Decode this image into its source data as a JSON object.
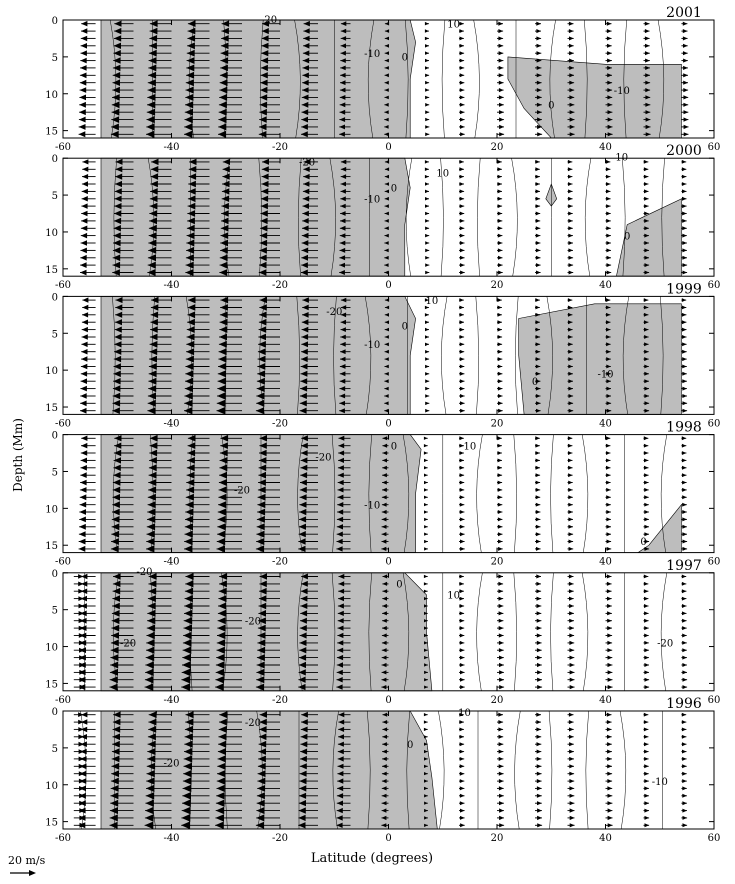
{
  "chart_data": {
    "type": "contour",
    "ylabel": "Depth (Mm)",
    "xlabel": "Latitude (degrees)",
    "scale_label": "20 m/s",
    "shading": "shaded = negative (southward) flow",
    "xlim": [
      -60,
      60
    ],
    "ylim": [
      16,
      0
    ],
    "x_ticks": [
      -60,
      -40,
      -20,
      0,
      20,
      40,
      60
    ],
    "y_ticks": [
      0,
      5,
      10,
      15
    ],
    "depth_levels": [
      0.5,
      1.5,
      2.5,
      3.5,
      4.5,
      5.5,
      6.5,
      7.5,
      8.5,
      9.5,
      10.5,
      11.5,
      12.5,
      13.5,
      14.5,
      15.5
    ],
    "panels": [
      {
        "year": "2001",
        "vector_columns": [
          {
            "lat": -54,
            "v": -12
          },
          {
            "lat": -47,
            "v": -16
          },
          {
            "lat": -40,
            "v": -18
          },
          {
            "lat": -33,
            "v": -18
          },
          {
            "lat": -27,
            "v": -17
          },
          {
            "lat": -20,
            "v": -15
          },
          {
            "lat": -13,
            "v": -12
          },
          {
            "lat": -7,
            "v": -8
          },
          {
            "lat": 0,
            "v": -3
          },
          {
            "lat": 7,
            "v": 2
          },
          {
            "lat": 13,
            "v": 4
          },
          {
            "lat": 20,
            "v": 5
          },
          {
            "lat": 27,
            "v": 5
          },
          {
            "lat": 33,
            "v": 5
          },
          {
            "lat": 40,
            "v": 5
          },
          {
            "lat": 47,
            "v": 5
          },
          {
            "lat": 54,
            "v": 5
          }
        ],
        "negative_regions": [
          [
            [
              -53,
              0
            ],
            [
              4,
              0
            ],
            [
              5,
              3
            ],
            [
              4,
              8
            ],
            [
              4,
              16
            ],
            [
              -53,
              16
            ]
          ],
          [
            [
              22,
              5
            ],
            [
              40,
              6
            ],
            [
              54,
              6
            ],
            [
              54,
              16
            ],
            [
              30,
              16
            ],
            [
              25,
              12
            ],
            [
              22,
              8
            ]
          ]
        ],
        "contour_labels": [
          {
            "text": "-20",
            "lat": -22,
            "depth": 0.4
          },
          {
            "text": "-10",
            "lat": -3,
            "depth": 5
          },
          {
            "text": "0",
            "lat": 3,
            "depth": 5.5
          },
          {
            "text": "10",
            "lat": 12,
            "depth": 1
          },
          {
            "text": "0",
            "lat": 30,
            "depth": 12
          },
          {
            "text": "-10",
            "lat": 43,
            "depth": 10
          }
        ]
      },
      {
        "year": "2000",
        "vector_columns": [
          {
            "lat": -54,
            "v": -11
          },
          {
            "lat": -47,
            "v": -15
          },
          {
            "lat": -40,
            "v": -17
          },
          {
            "lat": -33,
            "v": -17
          },
          {
            "lat": -27,
            "v": -16
          },
          {
            "lat": -20,
            "v": -15
          },
          {
            "lat": -13,
            "v": -12
          },
          {
            "lat": -7,
            "v": -8
          },
          {
            "lat": 0,
            "v": -3
          },
          {
            "lat": 7,
            "v": 2
          },
          {
            "lat": 13,
            "v": 4
          },
          {
            "lat": 20,
            "v": 4
          },
          {
            "lat": 27,
            "v": 4
          },
          {
            "lat": 33,
            "v": 4
          },
          {
            "lat": 40,
            "v": 4
          },
          {
            "lat": 47,
            "v": 4
          },
          {
            "lat": 54,
            "v": 4
          }
        ],
        "negative_regions": [
          [
            [
              -53,
              0
            ],
            [
              3,
              0
            ],
            [
              4,
              4
            ],
            [
              3,
              9
            ],
            [
              3,
              16
            ],
            [
              -53,
              16
            ]
          ],
          [
            [
              29,
              5.5
            ],
            [
              30,
              3.5
            ],
            [
              31,
              5.5
            ],
            [
              30,
              6.5
            ]
          ],
          [
            [
              44,
              9
            ],
            [
              54,
              5.5
            ],
            [
              54,
              16
            ],
            [
              42,
              16
            ]
          ]
        ],
        "contour_labels": [
          {
            "text": "-20",
            "lat": -15,
            "depth": 1
          },
          {
            "text": "-10",
            "lat": -3,
            "depth": 6
          },
          {
            "text": "0",
            "lat": 1,
            "depth": 4.5
          },
          {
            "text": "10",
            "lat": 10,
            "depth": 2.5
          },
          {
            "text": "10",
            "lat": 43,
            "depth": 0.3
          },
          {
            "text": "0",
            "lat": 44,
            "depth": 11
          }
        ]
      },
      {
        "year": "1999",
        "vector_columns": [
          {
            "lat": -54,
            "v": -11
          },
          {
            "lat": -47,
            "v": -15
          },
          {
            "lat": -40,
            "v": -17
          },
          {
            "lat": -33,
            "v": -18
          },
          {
            "lat": -27,
            "v": -18
          },
          {
            "lat": -20,
            "v": -17
          },
          {
            "lat": -13,
            "v": -13
          },
          {
            "lat": -7,
            "v": -8
          },
          {
            "lat": 0,
            "v": -3
          },
          {
            "lat": 7,
            "v": 2
          },
          {
            "lat": 13,
            "v": 4
          },
          {
            "lat": 20,
            "v": 4
          },
          {
            "lat": 27,
            "v": 4
          },
          {
            "lat": 33,
            "v": 4
          },
          {
            "lat": 40,
            "v": 4
          },
          {
            "lat": 47,
            "v": 4
          },
          {
            "lat": 54,
            "v": 4
          }
        ],
        "negative_regions": [
          [
            [
              -53,
              0
            ],
            [
              3,
              0
            ],
            [
              5,
              3
            ],
            [
              4,
              8
            ],
            [
              4,
              16
            ],
            [
              -53,
              16
            ]
          ],
          [
            [
              24,
              3
            ],
            [
              38,
              1
            ],
            [
              54,
              1
            ],
            [
              54,
              16
            ],
            [
              25,
              16
            ],
            [
              24,
              8
            ]
          ]
        ],
        "contour_labels": [
          {
            "text": "-20",
            "lat": -10,
            "depth": 2.5
          },
          {
            "text": "-10",
            "lat": -3,
            "depth": 7
          },
          {
            "text": "0",
            "lat": 3,
            "depth": 4.5
          },
          {
            "text": "10",
            "lat": 8,
            "depth": 1
          },
          {
            "text": "0",
            "lat": 27,
            "depth": 12
          },
          {
            "text": "-10",
            "lat": 40,
            "depth": 11
          }
        ]
      },
      {
        "year": "1998",
        "vector_columns": [
          {
            "lat": -54,
            "v": -12
          },
          {
            "lat": -47,
            "v": -16
          },
          {
            "lat": -40,
            "v": -18
          },
          {
            "lat": -33,
            "v": -18
          },
          {
            "lat": -27,
            "v": -18
          },
          {
            "lat": -20,
            "v": -17
          },
          {
            "lat": -13,
            "v": -14
          },
          {
            "lat": -7,
            "v": -10
          },
          {
            "lat": 0,
            "v": -5
          },
          {
            "lat": 7,
            "v": 1
          },
          {
            "lat": 13,
            "v": 4
          },
          {
            "lat": 20,
            "v": 4
          },
          {
            "lat": 27,
            "v": 4
          },
          {
            "lat": 33,
            "v": 4
          },
          {
            "lat": 40,
            "v": 4
          },
          {
            "lat": 47,
            "v": 4
          },
          {
            "lat": 54,
            "v": 4
          }
        ],
        "negative_regions": [
          [
            [
              -53,
              0
            ],
            [
              4,
              0
            ],
            [
              6,
              2
            ],
            [
              5,
              8
            ],
            [
              5,
              16
            ],
            [
              -53,
              16
            ]
          ],
          [
            [
              48,
              15
            ],
            [
              54,
              9.5
            ],
            [
              54,
              16
            ],
            [
              46,
              16
            ]
          ]
        ],
        "contour_labels": [
          {
            "text": "-20",
            "lat": -12,
            "depth": 3.5
          },
          {
            "text": "-20",
            "lat": -27,
            "depth": 8
          },
          {
            "text": "-10",
            "lat": -3,
            "depth": 10
          },
          {
            "text": "0",
            "lat": 1,
            "depth": 2
          },
          {
            "text": "10",
            "lat": 15,
            "depth": 2
          },
          {
            "text": "0",
            "lat": 47,
            "depth": 15
          }
        ]
      },
      {
        "year": "1997",
        "vector_columns": [
          {
            "lat": -58,
            "v": 8
          },
          {
            "lat": -54,
            "v": -12
          },
          {
            "lat": -47,
            "v": -17
          },
          {
            "lat": -40,
            "v": -19
          },
          {
            "lat": -33,
            "v": -20
          },
          {
            "lat": -27,
            "v": -19
          },
          {
            "lat": -20,
            "v": -17
          },
          {
            "lat": -13,
            "v": -14
          },
          {
            "lat": -7,
            "v": -10
          },
          {
            "lat": 0,
            "v": -5
          },
          {
            "lat": 7,
            "v": 1
          },
          {
            "lat": 13,
            "v": 4
          },
          {
            "lat": 20,
            "v": 5
          },
          {
            "lat": 27,
            "v": 5
          },
          {
            "lat": 33,
            "v": 5
          },
          {
            "lat": 40,
            "v": 5
          },
          {
            "lat": 47,
            "v": 4
          },
          {
            "lat": 54,
            "v": 4
          }
        ],
        "negative_regions": [
          [
            [
              -53,
              0
            ],
            [
              3,
              0
            ],
            [
              7,
              3
            ],
            [
              7,
              8
            ],
            [
              8,
              16
            ],
            [
              -53,
              16
            ]
          ]
        ],
        "contour_labels": [
          {
            "text": "-20",
            "lat": -45,
            "depth": 0.3
          },
          {
            "text": "-20",
            "lat": -25,
            "depth": 7
          },
          {
            "text": "-20",
            "lat": -48,
            "depth": 10
          },
          {
            "text": "0",
            "lat": 2,
            "depth": 2
          },
          {
            "text": "10",
            "lat": 12,
            "depth": 3.5
          },
          {
            "text": "-20",
            "lat": 51,
            "depth": 10
          }
        ]
      },
      {
        "year": "1996",
        "vector_columns": [
          {
            "lat": -58,
            "v": 8
          },
          {
            "lat": -54,
            "v": -12
          },
          {
            "lat": -47,
            "v": -17
          },
          {
            "lat": -40,
            "v": -19
          },
          {
            "lat": -33,
            "v": -20
          },
          {
            "lat": -27,
            "v": -19
          },
          {
            "lat": -20,
            "v": -17
          },
          {
            "lat": -13,
            "v": -14
          },
          {
            "lat": -7,
            "v": -10
          },
          {
            "lat": 0,
            "v": -5
          },
          {
            "lat": 7,
            "v": 1
          },
          {
            "lat": 13,
            "v": 4
          },
          {
            "lat": 20,
            "v": 5
          },
          {
            "lat": 27,
            "v": 5
          },
          {
            "lat": 33,
            "v": 5
          },
          {
            "lat": 40,
            "v": 5
          },
          {
            "lat": 47,
            "v": 4
          },
          {
            "lat": 54,
            "v": 4
          }
        ],
        "negative_regions": [
          [
            [
              -53,
              0
            ],
            [
              4,
              0
            ],
            [
              7,
              4
            ],
            [
              8,
              9
            ],
            [
              9,
              16
            ],
            [
              -53,
              16
            ]
          ]
        ],
        "contour_labels": [
          {
            "text": "-20",
            "lat": -25,
            "depth": 2
          },
          {
            "text": "-20",
            "lat": -40,
            "depth": 7.5
          },
          {
            "text": "0",
            "lat": 4,
            "depth": 5
          },
          {
            "text": "10",
            "lat": 14,
            "depth": 0.7
          },
          {
            "text": "-10",
            "lat": 50,
            "depth": 10
          }
        ]
      }
    ]
  }
}
